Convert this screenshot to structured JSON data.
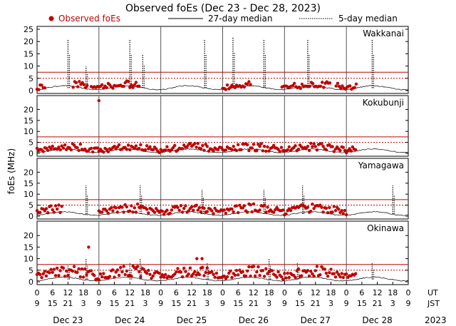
{
  "chart_data": {
    "type": "scatter",
    "title": "Observed foEs (Dec 23 - Dec 28, 2023)",
    "ylabel": "foEs (MHz)",
    "legend": {
      "placement": "top",
      "observed": "Observed foEs",
      "median27": "27-day median",
      "median5": "5-day median"
    },
    "x_unit_labels": {
      "ut": "UT",
      "jst": "JST"
    },
    "x_ut_ticks": [
      "0",
      "6",
      "12",
      "18",
      "0",
      "6",
      "12",
      "18",
      "0",
      "6",
      "12",
      "18",
      "0",
      "6",
      "12",
      "18",
      "0",
      "6",
      "12",
      "18",
      "0",
      "6",
      "12",
      "18",
      "0"
    ],
    "x_jst_ticks": [
      "9",
      "15",
      "21",
      "3",
      "9",
      "15",
      "21",
      "3",
      "9",
      "15",
      "21",
      "3",
      "9",
      "15",
      "21",
      "3",
      "9",
      "15",
      "21",
      "3",
      "9",
      "15",
      "21",
      "3",
      "9"
    ],
    "days": [
      "Dec 23",
      "Dec 24",
      "Dec 25",
      "Dec 26",
      "Dec 27",
      "Dec 28"
    ],
    "year": "2023",
    "x_range_hours": [
      0,
      144
    ],
    "colors": {
      "observed": "#c00000",
      "median27": "#000000",
      "median5": "#000000",
      "threshold": "#c00000"
    },
    "panels": [
      {
        "station": "Wakkanai",
        "ylim": [
          0,
          25
        ],
        "yticks": [
          "0",
          "5",
          "10",
          "15",
          "20",
          "25"
        ],
        "thresholds": [
          5,
          7.5
        ],
        "observed_hours": [
          [
            0,
            3.5
          ],
          [
            14,
            20
          ],
          [
            21,
            40
          ],
          [
            72,
            83
          ],
          [
            95,
            114
          ],
          [
            116,
            124
          ]
        ],
        "observed_levels": [
          1.5,
          2,
          3
        ],
        "spikes": [
          [
            12,
            21
          ],
          [
            19,
            10
          ],
          [
            36,
            21
          ],
          [
            41,
            15
          ],
          [
            65,
            21
          ],
          [
            76,
            22
          ],
          [
            88,
            21
          ],
          [
            105,
            21
          ],
          [
            130,
            21
          ]
        ]
      },
      {
        "station": "Kokubunji",
        "ylim": [
          0,
          25
        ],
        "yticks": [
          "0",
          "5",
          "10",
          "15",
          "20"
        ],
        "thresholds": [
          5,
          7.5
        ],
        "observed_hours": [
          [
            0,
            124
          ]
        ],
        "observed_levels": [
          1.5,
          2.5,
          3.5
        ],
        "spikes": [],
        "outliers": [
          [
            24,
            24
          ]
        ]
      },
      {
        "station": "Yamagawa",
        "ylim": [
          0,
          25
        ],
        "yticks": [
          "0",
          "5",
          "10",
          "15",
          "20"
        ],
        "thresholds": [
          5,
          7.5
        ],
        "observed_hours": [
          [
            0,
            10
          ],
          [
            24,
            120
          ]
        ],
        "observed_levels": [
          2,
          3.5,
          4.5
        ],
        "spikes": [
          [
            19,
            14
          ],
          [
            40,
            14
          ],
          [
            64,
            12
          ],
          [
            88,
            12
          ],
          [
            103,
            14
          ],
          [
            138,
            14
          ]
        ]
      },
      {
        "station": "Okinawa",
        "ylim": [
          0,
          25
        ],
        "yticks": [
          "0",
          "5",
          "10",
          "15",
          "20"
        ],
        "thresholds": [
          5,
          7.5
        ],
        "observed_hours": [
          [
            0,
            124
          ]
        ],
        "observed_levels": [
          2.5,
          4,
          5.5
        ],
        "spikes": [
          [
            12,
            7
          ],
          [
            19,
            10
          ],
          [
            36,
            8
          ],
          [
            40,
            10
          ],
          [
            66,
            8
          ],
          [
            90,
            10
          ],
          [
            101,
            8
          ],
          [
            130,
            8
          ]
        ],
        "outliers": [
          [
            20,
            15
          ],
          [
            62,
            10
          ],
          [
            64,
            10
          ]
        ]
      }
    ]
  }
}
